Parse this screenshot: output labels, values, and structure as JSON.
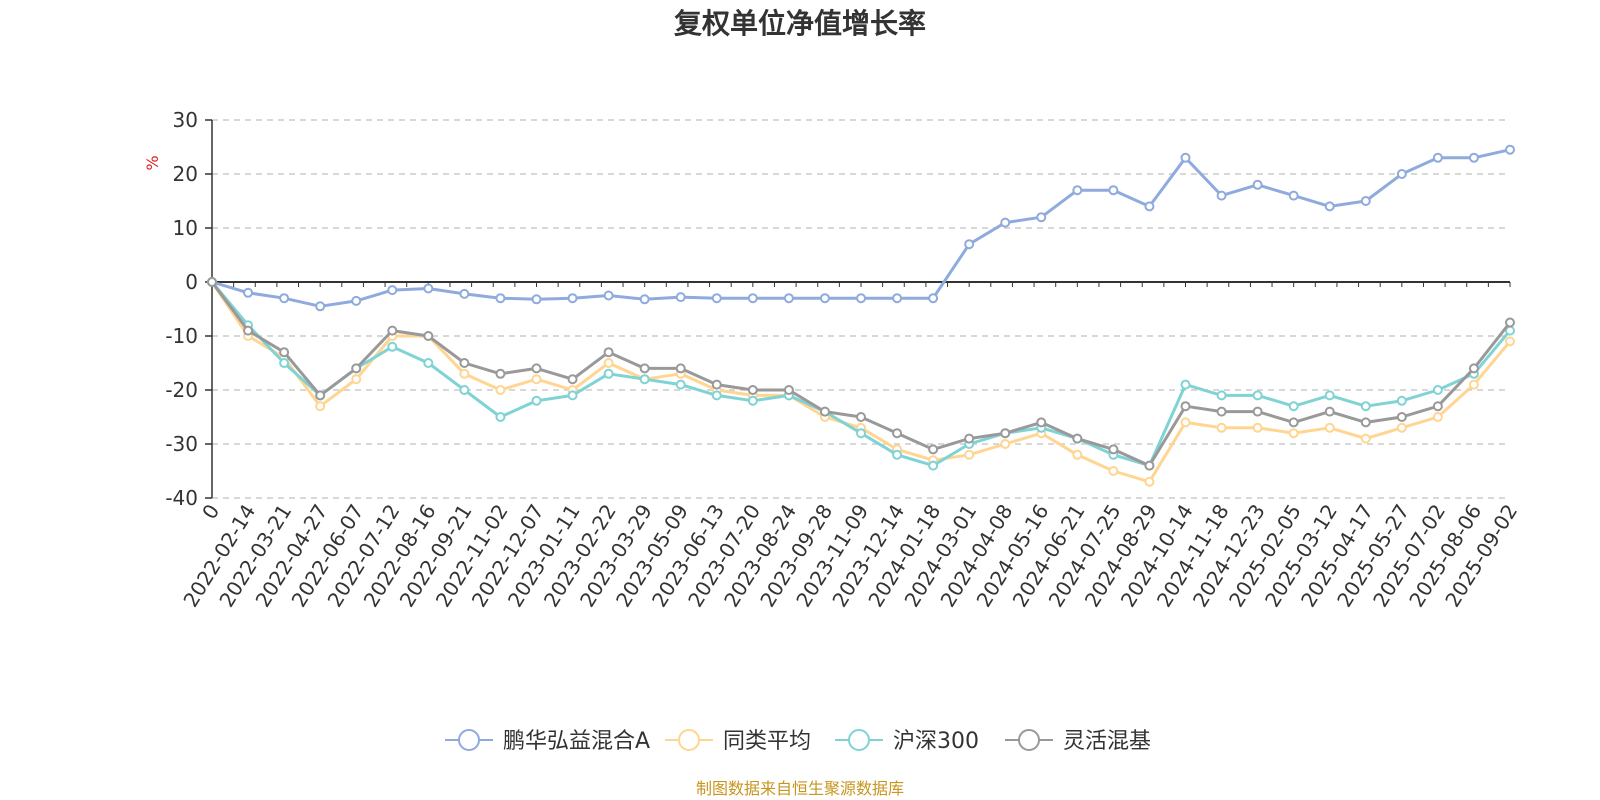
{
  "chart_data": {
    "type": "line",
    "title": "复权单位净值增长率",
    "ylabel": "%",
    "ylim": [
      -40,
      30
    ],
    "yticks": [
      30,
      20,
      10,
      0,
      -10,
      -20,
      -30,
      -40
    ],
    "grid": true,
    "legend_position": "bottom",
    "x_tick_labels": [
      "0",
      "2022-02-14",
      "2022-03-21",
      "2022-04-27",
      "2022-06-07",
      "2022-07-12",
      "2022-08-16",
      "2022-09-21",
      "2022-11-02",
      "2022-12-07",
      "2023-01-11",
      "2023-02-22",
      "2023-03-29",
      "2023-05-09",
      "2023-06-13",
      "2023-07-20",
      "2023-08-24",
      "2023-09-28",
      "2023-11-09",
      "2023-12-14",
      "2024-01-18",
      "2024-03-01",
      "2024-04-08",
      "2024-05-16",
      "2024-06-21",
      "2024-07-25",
      "2024-08-29",
      "2024-10-14",
      "2024-11-18",
      "2024-12-23",
      "2025-02-05",
      "2025-03-12",
      "2025-04-17",
      "2025-05-27",
      "2025-07-02",
      "2025-08-06",
      "2025-09-02"
    ],
    "series": [
      {
        "name": "鹏华弘益混合A",
        "color": "#8faadc",
        "values": [
          0,
          -2,
          -3,
          -4.5,
          -3.5,
          -1.5,
          -1.2,
          -2.2,
          -3,
          -3.2,
          -3,
          -2.5,
          -3.2,
          -2.8,
          -3,
          -3,
          -3,
          -3,
          -3,
          -3,
          -3,
          7,
          11,
          12,
          17,
          17,
          14,
          23,
          16,
          18,
          16,
          14,
          15,
          20,
          23,
          23,
          24.5
        ]
      },
      {
        "name": "同类平均",
        "color": "#ffd591",
        "values": [
          0,
          -10,
          -14,
          -23,
          -18,
          -10,
          -10,
          -17,
          -20,
          -18,
          -20,
          -15,
          -18,
          -17,
          -20,
          -21,
          -21,
          -25,
          -27,
          -31,
          -33,
          -32,
          -30,
          -28,
          -32,
          -35,
          -37,
          -26,
          -27,
          -27,
          -28,
          -27,
          -29,
          -27,
          -25,
          -19,
          -11
        ]
      },
      {
        "name": "沪深300",
        "color": "#7fd3d4",
        "values": [
          0,
          -8,
          -15,
          -21,
          -16,
          -12,
          -15,
          -20,
          -25,
          -22,
          -21,
          -17,
          -18,
          -19,
          -21,
          -22,
          -21,
          -24,
          -28,
          -32,
          -34,
          -30,
          -28,
          -27,
          -29,
          -32,
          -34,
          -19,
          -21,
          -21,
          -23,
          -21,
          -23,
          -22,
          -20,
          -17,
          -9
        ]
      },
      {
        "name": "灵活混基",
        "color": "#999999",
        "values": [
          0,
          -9,
          -13,
          -21,
          -16,
          -9,
          -10,
          -15,
          -17,
          -16,
          -18,
          -13,
          -16,
          -16,
          -19,
          -20,
          -20,
          -24,
          -25,
          -28,
          -31,
          -29,
          -28,
          -26,
          -29,
          -31,
          -34,
          -23,
          -24,
          -24,
          -26,
          -24,
          -26,
          -25,
          -23,
          -16,
          -7.5
        ]
      }
    ]
  },
  "footer": {
    "source": "制图数据来自恒生聚源数据库"
  }
}
